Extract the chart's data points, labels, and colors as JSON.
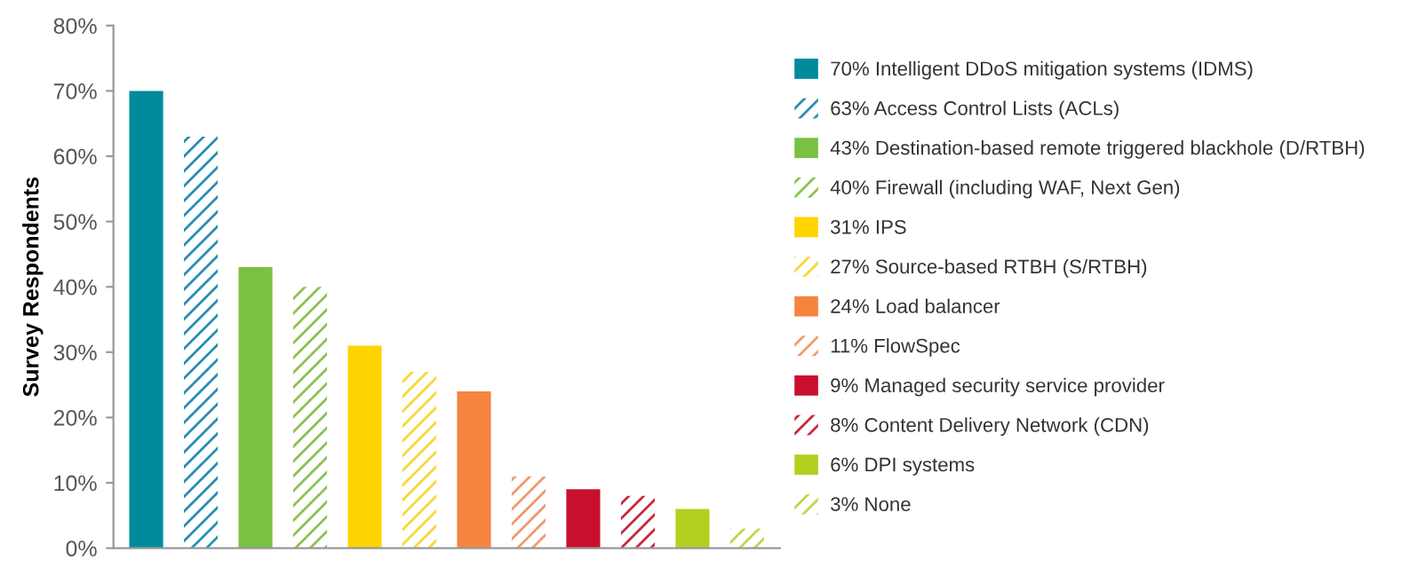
{
  "chart_data": {
    "type": "bar",
    "ylabel": "Survey Respondents",
    "categories": [
      null,
      null,
      null,
      null,
      null,
      null,
      null,
      null,
      null,
      null,
      null,
      null
    ],
    "series": [
      {
        "name": "70% Intelligent DDoS mitigation systems (IDMS)",
        "color": "#008b9c",
        "values": [
          70,
          null,
          null,
          null,
          null,
          null,
          null,
          null,
          null,
          null,
          null,
          null
        ]
      },
      {
        "name": "63% Access Control Lists (ACLs)",
        "color": "#2a8fb0",
        "values": [
          null,
          63,
          null,
          null,
          null,
          null,
          null,
          null,
          null,
          null,
          null,
          null
        ]
      },
      {
        "name": "43% Destination-based remote triggered blackhole (D/RTBH)",
        "color": "#7ac143",
        "values": [
          null,
          null,
          43,
          null,
          null,
          null,
          null,
          null,
          null,
          null,
          null,
          null
        ]
      },
      {
        "name": "40% Firewall (including WAF, Next Gen)",
        "color": "#8cc250",
        "values": [
          null,
          null,
          null,
          40,
          null,
          null,
          null,
          null,
          null,
          null,
          null,
          null
        ]
      },
      {
        "name": "31% IPS",
        "color": "#ffd400",
        "values": [
          null,
          null,
          null,
          null,
          31,
          null,
          null,
          null,
          null,
          null,
          null,
          null
        ]
      },
      {
        "name": "27% Source-based RTBH (S/RTBH)",
        "color": "#f5d83a",
        "values": [
          null,
          null,
          null,
          null,
          null,
          27,
          null,
          null,
          null,
          null,
          null,
          null
        ]
      },
      {
        "name": "24% Load balancer",
        "color": "#f5843f",
        "values": [
          null,
          null,
          null,
          null,
          null,
          null,
          24,
          null,
          null,
          null,
          null,
          null
        ]
      },
      {
        "name": "11% FlowSpec",
        "color": "#f39a66",
        "values": [
          null,
          null,
          null,
          null,
          null,
          null,
          null,
          11,
          null,
          null,
          null,
          null
        ]
      },
      {
        "name": "9% Managed security service provider",
        "color": "#c8102e",
        "values": [
          null,
          null,
          null,
          null,
          null,
          null,
          null,
          null,
          9,
          null,
          null,
          null
        ]
      },
      {
        "name": "8% Content Delivery Network (CDN)",
        "color": "#c8283c",
        "values": [
          null,
          null,
          null,
          null,
          null,
          null,
          null,
          null,
          null,
          8,
          null,
          null
        ]
      },
      {
        "name": "6% DPI systems",
        "color": "#b5cf20",
        "values": [
          null,
          null,
          null,
          null,
          null,
          null,
          null,
          null,
          null,
          null,
          6,
          null
        ]
      },
      {
        "name": "3% None",
        "color": "#c2d64a",
        "values": [
          null,
          null,
          null,
          null,
          null,
          null,
          null,
          null,
          null,
          null,
          null,
          3
        ]
      }
    ],
    "ylim": [
      0,
      80
    ],
    "yticks": [
      {
        "value": 0,
        "label": "0%"
      },
      {
        "value": 10,
        "label": "10%"
      },
      {
        "value": 20,
        "label": "20%"
      },
      {
        "value": 30,
        "label": "30%"
      },
      {
        "value": 40,
        "label": "40%"
      },
      {
        "value": 50,
        "label": "50%"
      },
      {
        "value": 60,
        "label": "60%"
      },
      {
        "value": 70,
        "label": "70%"
      },
      {
        "value": 80,
        "label": "80%"
      }
    ],
    "legend": "right",
    "grid": false
  }
}
